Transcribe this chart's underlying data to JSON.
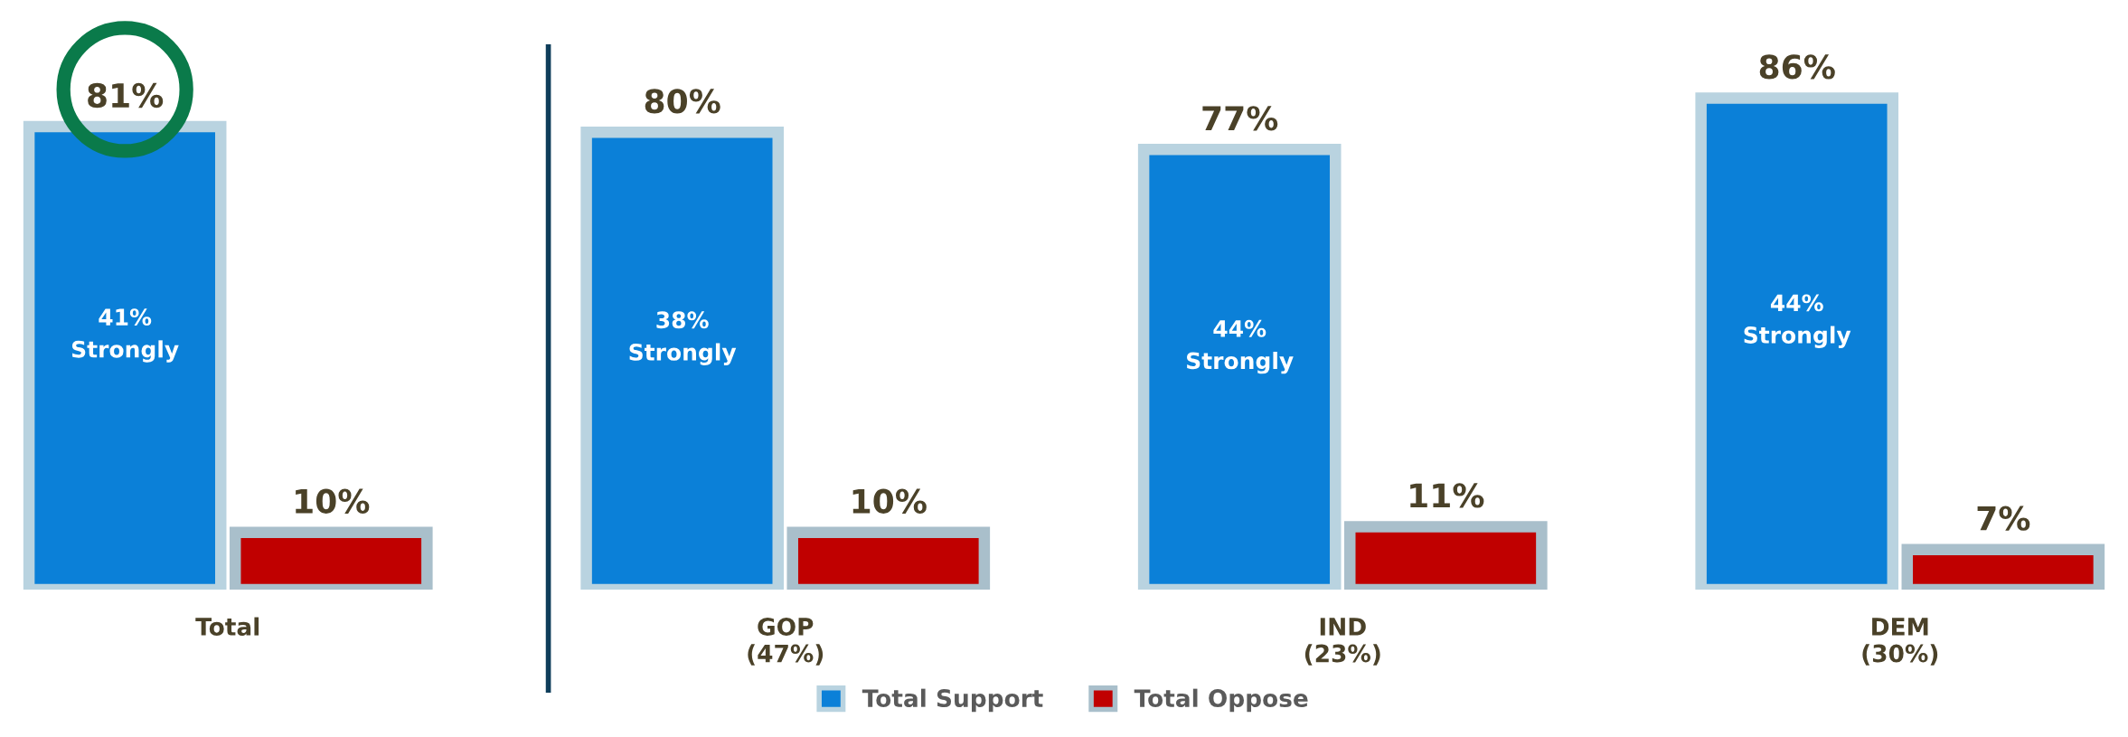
{
  "chart_data": {
    "type": "bar",
    "categories": [
      "Total",
      "GOP\n(47%)",
      "IND\n(23%)",
      "DEM\n(30%)"
    ],
    "series": [
      {
        "name": "Total Support",
        "color": "#0b80d8",
        "values": [
          81,
          80,
          77,
          86
        ],
        "value_labels": [
          "81%",
          "80%",
          "77%",
          "86%"
        ]
      },
      {
        "name": "Total Oppose",
        "color": "#c00000",
        "values": [
          10,
          10,
          11,
          7
        ],
        "value_labels": [
          "10%",
          "10%",
          "11%",
          "7%"
        ]
      }
    ],
    "annotations": [
      "41%\nStrongly",
      "38%\nStrongly",
      "44%\nStrongly",
      "44%\nStrongly"
    ],
    "legend": "bottom",
    "grid": false
  }
}
